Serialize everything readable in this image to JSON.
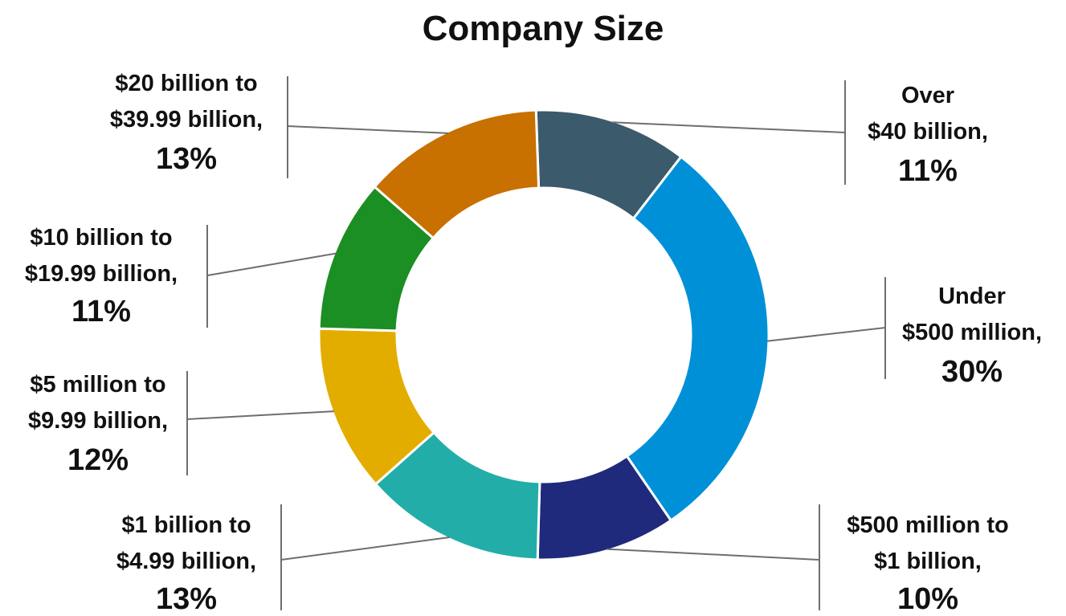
{
  "chart_data": {
    "type": "pie",
    "donut": true,
    "title": "Company Size",
    "slices": [
      {
        "label_lines": [
          "Over",
          "$40 billion,"
        ],
        "percent": "11%",
        "value": 11,
        "color": "#3b5a6b"
      },
      {
        "label_lines": [
          "Under",
          "$500 million,"
        ],
        "percent": "30%",
        "value": 30,
        "color": "#0090d8"
      },
      {
        "label_lines": [
          "$500 million to",
          "$1 billion,"
        ],
        "percent": "10%",
        "value": 10,
        "color": "#1f2a7c"
      },
      {
        "label_lines": [
          "$1 billion to",
          "$4.99 billion,"
        ],
        "percent": "13%",
        "value": 13,
        "color": "#23ada8"
      },
      {
        "label_lines": [
          "$5 million to",
          "$9.99 billion,"
        ],
        "percent": "12%",
        "value": 12,
        "color": "#e3ad00"
      },
      {
        "label_lines": [
          "$10 billion to",
          "$19.99 billion,"
        ],
        "percent": "11%",
        "value": 11,
        "color": "#1b8e24"
      },
      {
        "label_lines": [
          "$20 billion to",
          "$39.99 billion,"
        ],
        "percent": "13%",
        "value": 13,
        "color": "#c87000"
      }
    ],
    "legend": "none"
  }
}
